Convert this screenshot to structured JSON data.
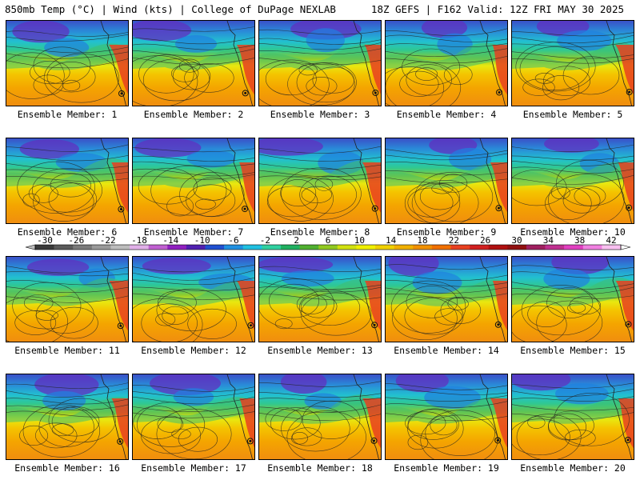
{
  "header": {
    "left": "850mb Temp (°C) | Wind (kts) | College of DuPage NEXLAB",
    "right": "18Z GEFS | F162 Valid: 12Z FRI MAY 30 2025"
  },
  "members": [
    "Ensemble Member: 1",
    "Ensemble Member: 2",
    "Ensemble Member: 3",
    "Ensemble Member: 4",
    "Ensemble Member: 5",
    "Ensemble Member: 6",
    "Ensemble Member: 7",
    "Ensemble Member: 8",
    "Ensemble Member: 9",
    "Ensemble Member: 10",
    "Ensemble Member: 11",
    "Ensemble Member: 12",
    "Ensemble Member: 13",
    "Ensemble Member: 14",
    "Ensemble Member: 15",
    "Ensemble Member: 16",
    "Ensemble Member: 17",
    "Ensemble Member: 18",
    "Ensemble Member: 19",
    "Ensemble Member: 20"
  ],
  "colorbar": {
    "labels": [
      "-30",
      "-26",
      "-22",
      "-18",
      "-14",
      "-10",
      "-6",
      "-2",
      "2",
      "6",
      "10",
      "14",
      "18",
      "22",
      "26",
      "30",
      "34",
      "38",
      "42"
    ],
    "colors": [
      "#3a3a3a",
      "#5a5a5a",
      "#7a7a7a",
      "#9a9a9a",
      "#bdbdbd",
      "#e0b0e8",
      "#c060d0",
      "#9020c0",
      "#5020b0",
      "#2050d0",
      "#2090e0",
      "#20c0e0",
      "#30d0a0",
      "#20b060",
      "#50b030",
      "#90c820",
      "#d0e010",
      "#f0f000",
      "#f0d000",
      "#f0b000",
      "#f09000",
      "#f07000",
      "#e84020",
      "#d02020",
      "#b01010",
      "#901010",
      "#a02060",
      "#c03090",
      "#e040c0",
      "#f080e0",
      "#f8c0f0"
    ]
  }
}
